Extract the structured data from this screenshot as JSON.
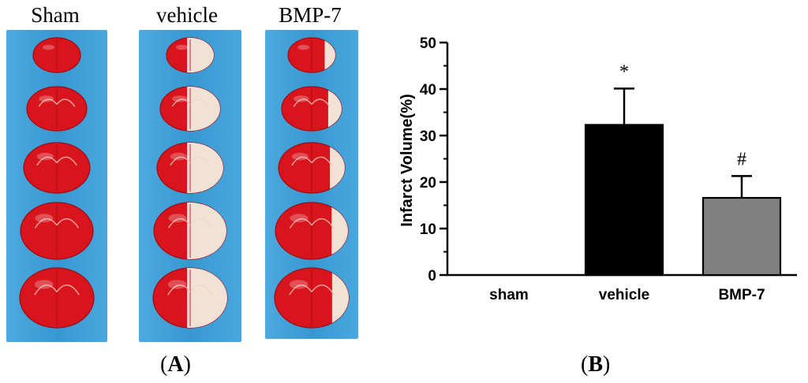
{
  "panel_a": {
    "label_letter": "A",
    "columns": [
      {
        "title": "Sham",
        "slices": 5,
        "lesion": "none"
      },
      {
        "title": "vehicle",
        "slices": 5,
        "lesion": "large"
      },
      {
        "title": "BMP-7",
        "slices": 5,
        "lesion": "small"
      }
    ]
  },
  "panel_b": {
    "label_letter": "B"
  },
  "colors": {
    "strip_bg": "#3aa0dc",
    "tissue": "#d8141c",
    "infarct": "#f3ecdf",
    "vehicle_bar": "#000000",
    "bmp7_bar": "#808080"
  },
  "chart_data": {
    "type": "bar",
    "categories": [
      "sham",
      "vehicle",
      "BMP-7"
    ],
    "values": [
      0,
      32.3,
      16.6
    ],
    "errors": [
      0,
      7.8,
      4.7
    ],
    "annotations": [
      "",
      "*",
      "#"
    ],
    "ylabel": "Infarct Volume(%)",
    "xlabel": "",
    "ylim": [
      0,
      50
    ],
    "yticks": [
      0,
      10,
      20,
      30,
      40,
      50
    ]
  }
}
